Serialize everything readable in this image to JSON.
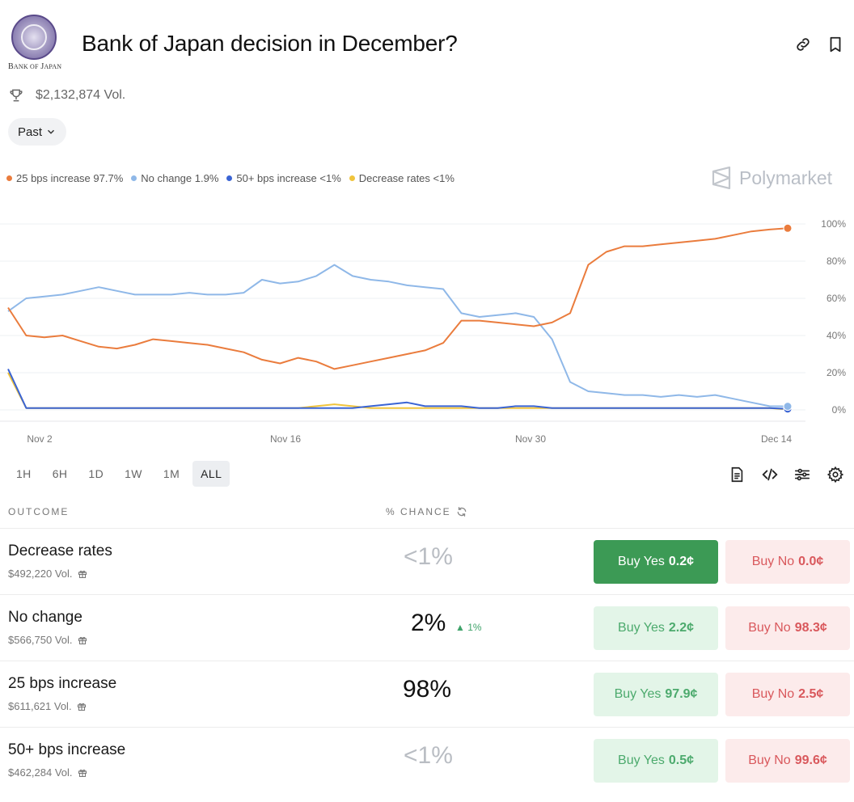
{
  "header": {
    "logo_text": "Bank of Japan",
    "title": "Bank of Japan decision in December?",
    "volume": "$2,132,874 Vol.",
    "filter": "Past"
  },
  "legend": [
    {
      "label": "25 bps increase 97.7%",
      "color": "#ea7c3d"
    },
    {
      "label": "No change 1.9%",
      "color": "#8fb8e8"
    },
    {
      "label": "50+ bps increase <1%",
      "color": "#3a64d4"
    },
    {
      "label": "Decrease rates <1%",
      "color": "#f0c43c"
    }
  ],
  "brand": "Polymarket",
  "chart_data": {
    "type": "line",
    "x_ticks": [
      "Nov 2",
      "Nov 16",
      "Nov 30",
      "Dec 14"
    ],
    "y_ticks": [
      "0%",
      "20%",
      "40%",
      "60%",
      "80%",
      "100%"
    ],
    "ylim": [
      0,
      100
    ],
    "grid": true,
    "legend_position": "top-left",
    "series": [
      {
        "name": "25 bps increase",
        "color": "#ea7c3d",
        "values": [
          55,
          40,
          39,
          40,
          37,
          34,
          33,
          35,
          38,
          37,
          36,
          35,
          33,
          31,
          27,
          25,
          28,
          26,
          22,
          24,
          26,
          28,
          30,
          32,
          36,
          48,
          48,
          47,
          46,
          45,
          47,
          52,
          78,
          85,
          88,
          88,
          89,
          90,
          91,
          92,
          94,
          96,
          97,
          97.7
        ]
      },
      {
        "name": "No change",
        "color": "#8fb8e8",
        "values": [
          53,
          60,
          61,
          62,
          64,
          66,
          64,
          62,
          62,
          62,
          63,
          62,
          62,
          63,
          70,
          68,
          69,
          72,
          78,
          72,
          70,
          69,
          67,
          66,
          65,
          52,
          50,
          51,
          52,
          50,
          38,
          15,
          10,
          9,
          8,
          8,
          7,
          8,
          7,
          8,
          6,
          4,
          2,
          1.9
        ]
      },
      {
        "name": "50+ bps increase",
        "color": "#3a64d4",
        "values": [
          22,
          1,
          1,
          1,
          1,
          1,
          1,
          1,
          1,
          1,
          1,
          1,
          1,
          1,
          1,
          1,
          1,
          1,
          1,
          1,
          2,
          3,
          4,
          2,
          2,
          2,
          1,
          1,
          2,
          2,
          1,
          1,
          1,
          1,
          1,
          1,
          1,
          1,
          1,
          1,
          1,
          1,
          1,
          0.5
        ]
      },
      {
        "name": "Decrease rates",
        "color": "#f0c43c",
        "values": [
          20,
          1,
          1,
          1,
          1,
          1,
          1,
          1,
          1,
          1,
          1,
          1,
          1,
          1,
          1,
          1,
          1,
          2,
          3,
          2,
          1,
          1,
          1,
          1,
          1,
          1,
          1,
          1,
          1,
          1,
          1,
          1,
          1,
          1,
          1,
          1,
          1,
          1,
          1,
          1,
          1,
          1,
          1,
          0.2
        ]
      }
    ]
  },
  "ranges": [
    "1H",
    "6H",
    "1D",
    "1W",
    "1M",
    "ALL"
  ],
  "active_range": "ALL",
  "table": {
    "col_outcome": "OUTCOME",
    "col_chance": "% CHANCE",
    "rows": [
      {
        "name": "Decrease rates",
        "vol": "$492,220 Vol.",
        "chance": "<1%",
        "delta": "",
        "yes_label": "Buy Yes",
        "yes_price": "0.2¢",
        "no_label": "Buy No",
        "no_price": "0.0¢"
      },
      {
        "name": "No change",
        "vol": "$566,750 Vol.",
        "chance": "2%",
        "delta": "1%",
        "yes_label": "Buy Yes",
        "yes_price": "2.2¢",
        "no_label": "Buy No",
        "no_price": "98.3¢"
      },
      {
        "name": "25 bps increase",
        "vol": "$611,621 Vol.",
        "chance": "98%",
        "delta": "",
        "yes_label": "Buy Yes",
        "yes_price": "97.9¢",
        "no_label": "Buy No",
        "no_price": "2.5¢"
      },
      {
        "name": "50+ bps increase",
        "vol": "$462,284 Vol.",
        "chance": "<1%",
        "delta": "",
        "yes_label": "Buy Yes",
        "yes_price": "0.5¢",
        "no_label": "Buy No",
        "no_price": "99.6¢"
      }
    ]
  }
}
